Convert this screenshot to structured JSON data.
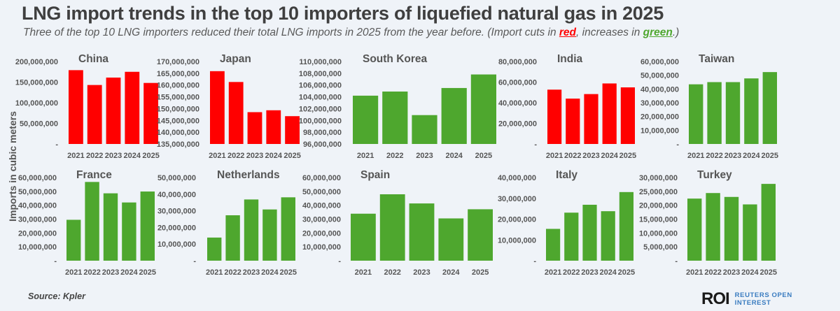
{
  "title": "LNG import trends in the top 10 importers of liquefied natural gas in 2025",
  "subtitle": {
    "before": "Three of the top 10 LNG importers reduced their total LNG imports in 2025 from the year before. (Import cuts in ",
    "red_word": "red",
    "middle": ", increases in ",
    "green_word": "green",
    "after": ".)"
  },
  "ylabel": "Imports in cubic meters",
  "source": "Source:  Kpler",
  "logo": {
    "mark": "ROI",
    "text": "REUTERS OPEN INTEREST"
  },
  "colors": {
    "cut": "#ff0000",
    "increase": "#4ea72e"
  },
  "chart_data": [
    {
      "type": "bar",
      "title": "China",
      "categories": [
        "2021",
        "2022",
        "2023",
        "2024",
        "2025"
      ],
      "values": [
        179000000,
        143000000,
        161000000,
        175000000,
        148000000
      ],
      "color": "#ff0000",
      "ylim": [
        0,
        200000000
      ],
      "ticks": [
        0,
        50000000,
        100000000,
        150000000,
        200000000
      ],
      "tick_labels": [
        "-",
        "50,000,000",
        "100,000,000",
        "150,000,000",
        "200,000,000"
      ]
    },
    {
      "type": "bar",
      "title": "Japan",
      "categories": [
        "2021",
        "2022",
        "2023",
        "2024",
        "2025"
      ],
      "values": [
        165900000,
        161300000,
        148500000,
        149300000,
        146800000
      ],
      "color": "#ff0000",
      "ylim": [
        135000000,
        170000000
      ],
      "ticks": [
        135000000,
        140000000,
        145000000,
        150000000,
        155000000,
        160000000,
        165000000,
        170000000
      ],
      "tick_labels": [
        "135,000,000",
        "140,000,000",
        "145,000,000",
        "150,000,000",
        "155,000,000",
        "160,000,000",
        "165,000,000",
        "170,000,000"
      ]
    },
    {
      "type": "bar",
      "title": "South Korea",
      "categories": [
        "2021",
        "2022",
        "2023",
        "2024",
        "2025"
      ],
      "values": [
        104200000,
        104900000,
        100900000,
        105500000,
        107800000
      ],
      "color": "#4ea72e",
      "ylim": [
        96000000,
        110000000
      ],
      "ticks": [
        96000000,
        98000000,
        100000000,
        102000000,
        104000000,
        106000000,
        108000000,
        110000000
      ],
      "tick_labels": [
        "96,000,000",
        "98,000,000",
        "100,000,000",
        "102,000,000",
        "104,000,000",
        "106,000,000",
        "108,000,000",
        "110,000,000"
      ]
    },
    {
      "type": "bar",
      "title": "India",
      "categories": [
        "2021",
        "2022",
        "2023",
        "2024",
        "2025"
      ],
      "values": [
        52700000,
        44000000,
        48400000,
        58700000,
        54900000
      ],
      "color": "#ff0000",
      "ylim": [
        0,
        80000000
      ],
      "ticks": [
        0,
        20000000,
        40000000,
        60000000,
        80000000
      ],
      "tick_labels": [
        "-",
        "20,000,000",
        "40,000,000",
        "60,000,000",
        "80,000,000"
      ]
    },
    {
      "type": "bar",
      "title": "Taiwan",
      "categories": [
        "2021",
        "2022",
        "2023",
        "2024",
        "2025"
      ],
      "values": [
        43400000,
        45000000,
        45000000,
        47700000,
        52300000
      ],
      "color": "#4ea72e",
      "ylim": [
        0,
        60000000
      ],
      "ticks": [
        0,
        10000000,
        20000000,
        30000000,
        40000000,
        50000000,
        60000000
      ],
      "tick_labels": [
        "-",
        "10,000,000",
        "20,000,000",
        "30,000,000",
        "40,000,000",
        "50,000,000",
        "60,000,000"
      ]
    },
    {
      "type": "bar",
      "title": "France",
      "categories": [
        "2021",
        "2022",
        "2023",
        "2024",
        "2025"
      ],
      "values": [
        29500000,
        56800000,
        48600000,
        42000000,
        49900000
      ],
      "color": "#4ea72e",
      "ylim": [
        0,
        60000000
      ],
      "ticks": [
        0,
        10000000,
        20000000,
        30000000,
        40000000,
        50000000,
        60000000
      ],
      "tick_labels": [
        "-",
        "10,000,000",
        "20,000,000",
        "30,000,000",
        "40,000,000",
        "50,000,000",
        "60,000,000"
      ]
    },
    {
      "type": "bar",
      "title": "Netherlands",
      "categories": [
        "2021",
        "2022",
        "2023",
        "2024",
        "2025"
      ],
      "values": [
        13900000,
        27300000,
        36800000,
        30800000,
        38100000
      ],
      "color": "#4ea72e",
      "ylim": [
        0,
        50000000
      ],
      "ticks": [
        0,
        10000000,
        20000000,
        30000000,
        40000000,
        50000000
      ],
      "tick_labels": [
        "-",
        "10,000,000",
        "20,000,000",
        "30,000,000",
        "40,000,000",
        "50,000,000"
      ]
    },
    {
      "type": "bar",
      "title": "Spain",
      "categories": [
        "2021",
        "2022",
        "2023",
        "2024",
        "2025"
      ],
      "values": [
        33900000,
        47900000,
        41300000,
        30500000,
        37100000
      ],
      "color": "#4ea72e",
      "ylim": [
        0,
        60000000
      ],
      "ticks": [
        0,
        10000000,
        20000000,
        30000000,
        40000000,
        50000000,
        60000000
      ],
      "tick_labels": [
        "-",
        "10,000,000",
        "20,000,000",
        "30,000,000",
        "40,000,000",
        "50,000,000",
        "60,000,000"
      ]
    },
    {
      "type": "bar",
      "title": "Italy",
      "categories": [
        "2021",
        "2022",
        "2023",
        "2024",
        "2025"
      ],
      "values": [
        15300000,
        23100000,
        26900000,
        23800000,
        33000000
      ],
      "color": "#4ea72e",
      "ylim": [
        0,
        40000000
      ],
      "ticks": [
        0,
        10000000,
        20000000,
        30000000,
        40000000
      ],
      "tick_labels": [
        "-",
        "10,000,000",
        "20,000,000",
        "30,000,000",
        "40,000,000"
      ]
    },
    {
      "type": "bar",
      "title": "Turkey",
      "categories": [
        "2021",
        "2022",
        "2023",
        "2024",
        "2025"
      ],
      "values": [
        22400000,
        24400000,
        23000000,
        20300000,
        27700000
      ],
      "color": "#4ea72e",
      "ylim": [
        0,
        30000000
      ],
      "ticks": [
        0,
        5000000,
        10000000,
        15000000,
        20000000,
        25000000,
        30000000
      ],
      "tick_labels": [
        "-",
        "5,000,000",
        "10,000,000",
        "15,000,000",
        "20,000,000",
        "25,000,000",
        "30,000,000"
      ]
    }
  ]
}
